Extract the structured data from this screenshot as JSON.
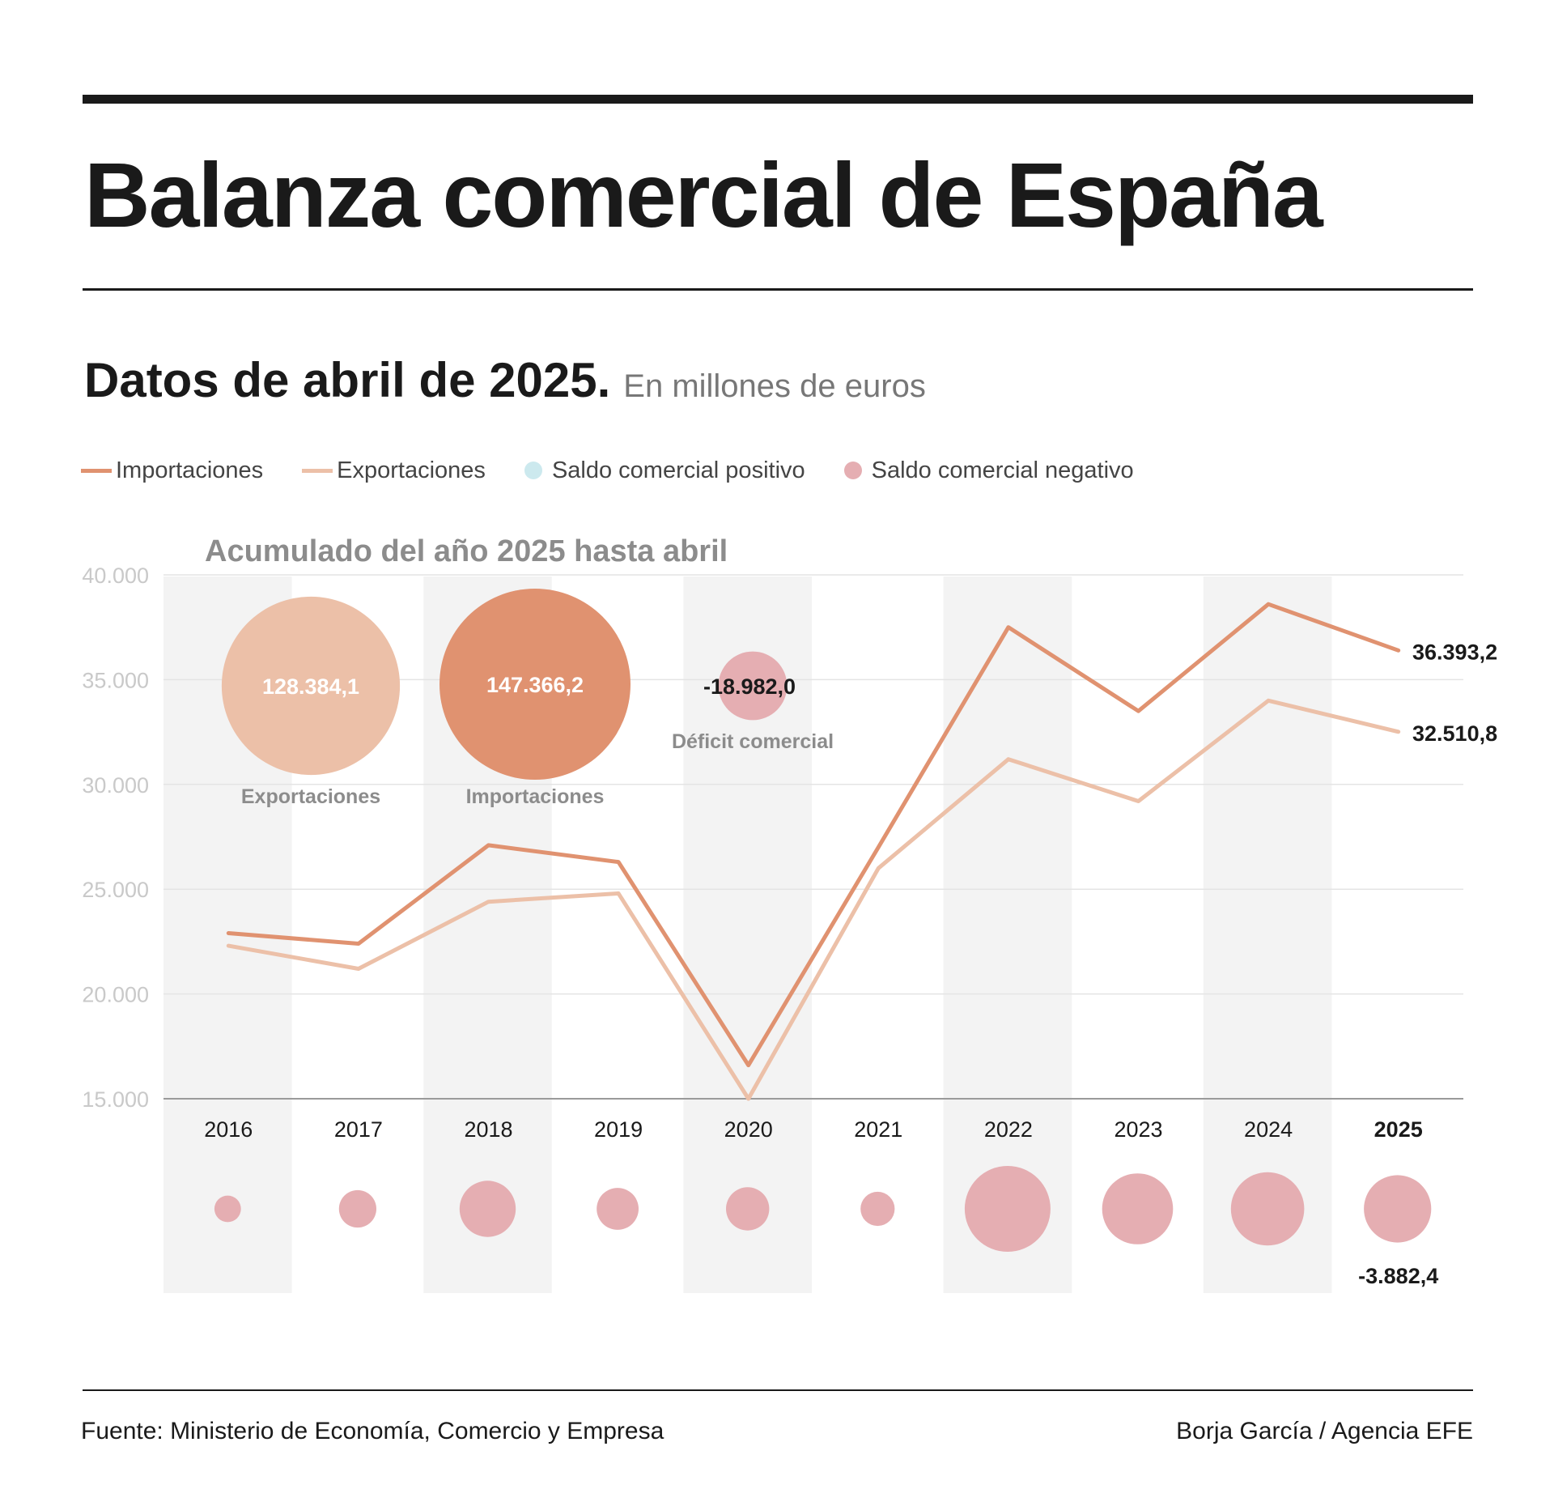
{
  "title": "Balanza comercial de España",
  "subtitle": "Datos de abril de 2025.",
  "units": "En millones de euros",
  "legend": [
    {
      "label": "Importaciones",
      "color": "#e09270",
      "kind": "line"
    },
    {
      "label": "Exportaciones",
      "color": "#ecc0a8",
      "kind": "line"
    },
    {
      "label": "Saldo comercial positivo",
      "color": "#cce9ee",
      "kind": "dot"
    },
    {
      "label": "Saldo comercial negativo",
      "color": "#e5aeb2",
      "kind": "dot"
    }
  ],
  "accumulated": {
    "heading": "Acumulado del año 2025 hasta abril",
    "exports": {
      "value": 128384.1,
      "value_label": "128.384,1",
      "label": "Exportaciones",
      "color": "#ecc0a8"
    },
    "imports": {
      "value": 147366.2,
      "value_label": "147.366,2",
      "label": "Importaciones",
      "color": "#e09270"
    },
    "deficit": {
      "value": -18982.0,
      "value_label": "-18.982,0",
      "label": "Déficit comercial",
      "color": "#e5aeb2"
    }
  },
  "chart_data": {
    "type": "line",
    "x": [
      "2016",
      "2017",
      "2018",
      "2019",
      "2020",
      "2021",
      "2022",
      "2023",
      "2024",
      "2025"
    ],
    "ylim": [
      15000,
      40000
    ],
    "yticks": [
      40000,
      35000,
      30000,
      25000,
      20000,
      15000
    ],
    "ytick_labels": [
      "40.000",
      "35.000",
      "30.000",
      "25.000",
      "20.000",
      "15.000"
    ],
    "grid": true,
    "alternating_column_shading": true,
    "series": [
      {
        "name": "Importaciones",
        "color": "#e09270",
        "values": [
          22900,
          22400,
          27100,
          26300,
          16600,
          27000,
          37500,
          33500,
          38600,
          36393.2
        ],
        "end_label": "36.393,2"
      },
      {
        "name": "Exportaciones",
        "color": "#ecc0a8",
        "values": [
          22300,
          21200,
          24400,
          24800,
          15000,
          26000,
          31200,
          29200,
          34000,
          32510.8
        ],
        "end_label": "32.510,8"
      }
    ],
    "trade_balance": {
      "name": "Saldo comercial negativo",
      "color": "#e5aeb2",
      "values": [
        -600,
        -1200,
        -2700,
        -1500,
        -1600,
        -1000,
        -6300,
        -4300,
        -4600,
        -3882.4
      ],
      "last_label": "-3.882,4"
    },
    "highlight_year": "2025"
  },
  "footer": {
    "source": "Fuente: Ministerio de Economía, Comercio y Empresa",
    "credit": "Borja García / Agencia EFE"
  }
}
